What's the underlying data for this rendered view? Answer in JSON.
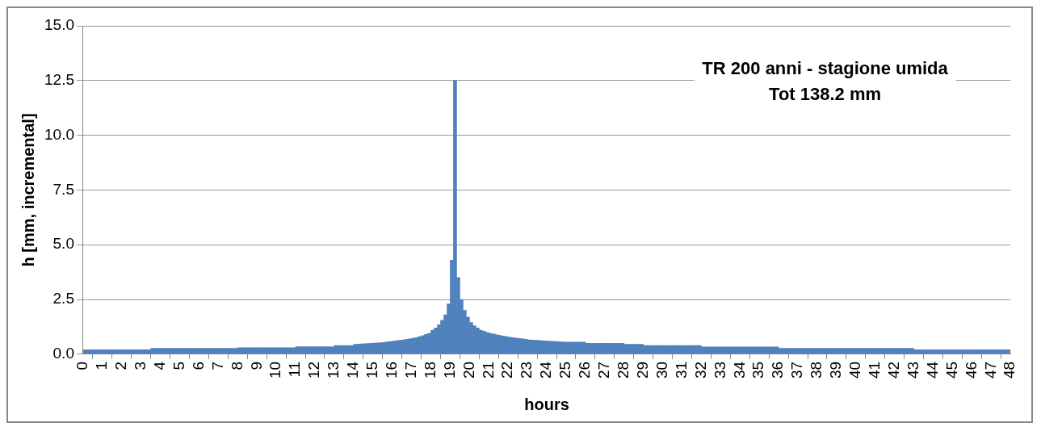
{
  "chart_data": {
    "type": "histogram",
    "title": "TR 200 anni - stagione umida",
    "subtitle": "Tot 138.2 mm",
    "xlabel": "hours",
    "ylabel": "h [mm, incremental]",
    "bins": [
      0,
      0.1667,
      0.3333,
      0.5,
      0.6667,
      0.8333,
      1,
      1.1667,
      1.3333,
      1.5,
      1.6667,
      1.8333,
      2,
      2.1667,
      2.3333,
      2.5,
      2.6667,
      2.8333,
      3,
      3.1667,
      3.3333,
      3.5,
      3.6667,
      3.8333,
      4,
      4.1667,
      4.3333,
      4.5,
      4.6667,
      4.8333,
      5,
      5.1667,
      5.3333,
      5.5,
      5.6667,
      5.8333,
      6,
      6.1667,
      6.3333,
      6.5,
      6.6667,
      6.8333,
      7,
      7.1667,
      7.3333,
      7.5,
      7.6667,
      7.8333,
      8,
      8.1667,
      8.3333,
      8.5,
      8.6667,
      8.8333,
      9,
      9.1667,
      9.3333,
      9.5,
      9.6667,
      9.8333,
      10,
      10.1667,
      10.3333,
      10.5,
      10.6667,
      10.8333,
      11,
      11.1667,
      11.3333,
      11.5,
      11.6667,
      11.8333,
      12,
      12.1667,
      12.3333,
      12.5,
      12.6667,
      12.8333,
      13,
      13.1667,
      13.3333,
      13.5,
      13.6667,
      13.8333,
      14,
      14.1667,
      14.3333,
      14.5,
      14.6667,
      14.8333,
      15,
      15.1667,
      15.3333,
      15.5,
      15.6667,
      15.8333,
      16,
      16.1667,
      16.3333,
      16.5,
      16.6667,
      16.8333,
      17,
      17.1667,
      17.3333,
      17.5,
      17.6667,
      17.8333,
      18,
      18.1667,
      18.3333,
      18.5,
      18.6667,
      18.8333,
      19,
      19.1667,
      19.3333,
      19.5,
      19.6667,
      19.8333,
      20,
      20.1667,
      20.3333,
      20.5,
      20.6667,
      20.8333,
      21,
      21.1667,
      21.3333,
      21.5,
      21.6667,
      21.8333,
      22,
      22.1667,
      22.3333,
      22.5,
      22.6667,
      22.8333,
      23,
      23.1667,
      23.3333,
      23.5,
      23.6667,
      23.8333,
      24,
      24.1667,
      24.3333,
      24.5,
      24.6667,
      24.8333,
      25,
      25.1667,
      25.3333,
      25.5,
      25.6667,
      25.8333,
      26,
      26.1667,
      26.3333,
      26.5,
      26.6667,
      26.8333,
      27,
      27.1667,
      27.3333,
      27.5,
      27.6667,
      27.8333,
      28,
      28.1667,
      28.3333,
      28.5,
      28.6667,
      28.8333,
      29,
      29.1667,
      29.3333,
      29.5,
      29.6667,
      29.8333,
      30,
      30.1667,
      30.3333,
      30.5,
      30.6667,
      30.8333,
      31,
      31.1667,
      31.3333,
      31.5,
      31.6667,
      31.8333,
      32,
      32.1667,
      32.3333,
      32.5,
      32.6667,
      32.8333,
      33,
      33.1667,
      33.3333,
      33.5,
      33.6667,
      33.8333,
      34,
      34.1667,
      34.3333,
      34.5,
      34.6667,
      34.8333,
      35,
      35.1667,
      35.3333,
      35.5,
      35.6667,
      35.8333,
      36,
      36.1667,
      36.3333,
      36.5,
      36.6667,
      36.8333,
      37,
      37.1667,
      37.3333,
      37.5,
      37.6667,
      37.8333,
      38,
      38.1667,
      38.3333,
      38.5,
      38.6667,
      38.8333,
      39,
      39.1667,
      39.3333,
      39.5,
      39.6667,
      39.8333,
      40,
      40.1667,
      40.3333,
      40.5,
      40.6667,
      40.8333,
      41,
      41.1667,
      41.3333,
      41.5,
      41.6667,
      41.8333,
      42,
      42.1667,
      42.3333,
      42.5,
      42.6667,
      42.8333,
      43,
      43.1667,
      43.3333,
      43.5,
      43.6667,
      43.8333,
      44,
      44.1667,
      44.3333,
      44.5,
      44.6667,
      44.8333,
      45,
      45.1667,
      45.3333,
      45.5,
      45.6667,
      45.8333,
      46,
      46.1667,
      46.3333,
      46.5,
      46.6667,
      46.8333,
      47,
      47.1667,
      47.3333,
      47.5,
      47.6667,
      47.8333,
      48
    ],
    "values": [
      0.2,
      0.2,
      0.2,
      0.2,
      0.2,
      0.2,
      0.2,
      0.2,
      0.2,
      0.2,
      0.2,
      0.2,
      0.2,
      0.2,
      0.2,
      0.2,
      0.2,
      0.2,
      0.2,
      0.2,
      0.2,
      0.27,
      0.27,
      0.27,
      0.27,
      0.27,
      0.27,
      0.27,
      0.27,
      0.27,
      0.27,
      0.27,
      0.27,
      0.27,
      0.27,
      0.27,
      0.27,
      0.27,
      0.27,
      0.27,
      0.27,
      0.27,
      0.27,
      0.27,
      0.27,
      0.27,
      0.27,
      0.27,
      0.3,
      0.3,
      0.3,
      0.3,
      0.3,
      0.3,
      0.3,
      0.3,
      0.3,
      0.3,
      0.3,
      0.3,
      0.3,
      0.3,
      0.3,
      0.3,
      0.3,
      0.3,
      0.34,
      0.34,
      0.34,
      0.34,
      0.34,
      0.34,
      0.34,
      0.34,
      0.34,
      0.34,
      0.34,
      0.34,
      0.4,
      0.4,
      0.4,
      0.4,
      0.4,
      0.4,
      0.45,
      0.46,
      0.47,
      0.48,
      0.49,
      0.5,
      0.51,
      0.52,
      0.53,
      0.54,
      0.56,
      0.58,
      0.6,
      0.62,
      0.64,
      0.66,
      0.68,
      0.7,
      0.73,
      0.76,
      0.8,
      0.85,
      0.9,
      0.95,
      1.1,
      1.2,
      1.35,
      1.55,
      1.8,
      2.3,
      4.3,
      12.5,
      3.5,
      2.5,
      2.0,
      1.7,
      1.45,
      1.3,
      1.2,
      1.1,
      1.05,
      1.0,
      0.95,
      0.92,
      0.89,
      0.86,
      0.83,
      0.8,
      0.78,
      0.76,
      0.74,
      0.72,
      0.7,
      0.68,
      0.66,
      0.65,
      0.64,
      0.63,
      0.62,
      0.61,
      0.6,
      0.59,
      0.58,
      0.57,
      0.56,
      0.55,
      0.55,
      0.55,
      0.55,
      0.55,
      0.55,
      0.55,
      0.5,
      0.5,
      0.5,
      0.5,
      0.5,
      0.5,
      0.5,
      0.5,
      0.5,
      0.5,
      0.5,
      0.5,
      0.45,
      0.45,
      0.45,
      0.45,
      0.45,
      0.45,
      0.4,
      0.4,
      0.4,
      0.4,
      0.4,
      0.4,
      0.4,
      0.4,
      0.4,
      0.4,
      0.4,
      0.4,
      0.4,
      0.4,
      0.4,
      0.4,
      0.4,
      0.4,
      0.33,
      0.33,
      0.33,
      0.33,
      0.33,
      0.33,
      0.33,
      0.33,
      0.33,
      0.33,
      0.33,
      0.33,
      0.33,
      0.33,
      0.33,
      0.33,
      0.33,
      0.33,
      0.33,
      0.33,
      0.33,
      0.33,
      0.33,
      0.33,
      0.27,
      0.27,
      0.27,
      0.27,
      0.27,
      0.27,
      0.27,
      0.27,
      0.27,
      0.27,
      0.27,
      0.27,
      0.27,
      0.27,
      0.27,
      0.27,
      0.27,
      0.27,
      0.27,
      0.27,
      0.27,
      0.27,
      0.27,
      0.27,
      0.27,
      0.27,
      0.27,
      0.27,
      0.27,
      0.27,
      0.27,
      0.27,
      0.27,
      0.27,
      0.27,
      0.27,
      0.27,
      0.27,
      0.27,
      0.27,
      0.27,
      0.27,
      0.2,
      0.2,
      0.2,
      0.2,
      0.2,
      0.2,
      0.2,
      0.2,
      0.2,
      0.2,
      0.2,
      0.2,
      0.2,
      0.2,
      0.2,
      0.2,
      0.2,
      0.2,
      0.2,
      0.2,
      0.2,
      0.2,
      0.2,
      0.2,
      0.2,
      0.2,
      0.2,
      0.2,
      0.2,
      0.2
    ],
    "color": "#4f81bd",
    "xlim": [
      0,
      48
    ],
    "xticks": [
      0,
      1,
      2,
      3,
      4,
      5,
      6,
      7,
      8,
      9,
      10,
      11,
      12,
      13,
      14,
      15,
      16,
      17,
      18,
      19,
      20,
      21,
      22,
      23,
      24,
      25,
      26,
      27,
      28,
      29,
      30,
      31,
      32,
      33,
      34,
      35,
      36,
      37,
      38,
      39,
      40,
      41,
      42,
      43,
      44,
      45,
      46,
      47,
      48
    ],
    "ylim": [
      0,
      15
    ],
    "yticks": [
      {
        "value": 0,
        "label": "0.0"
      },
      {
        "value": 2.5,
        "label": "2.5"
      },
      {
        "value": 5,
        "label": "5.0"
      },
      {
        "value": 7.5,
        "label": "7.5"
      },
      {
        "value": 10,
        "label": "10.0"
      },
      {
        "value": 12.5,
        "label": "12.5"
      },
      {
        "value": 15,
        "label": "15.0"
      }
    ],
    "grid": "y",
    "legend": false
  }
}
